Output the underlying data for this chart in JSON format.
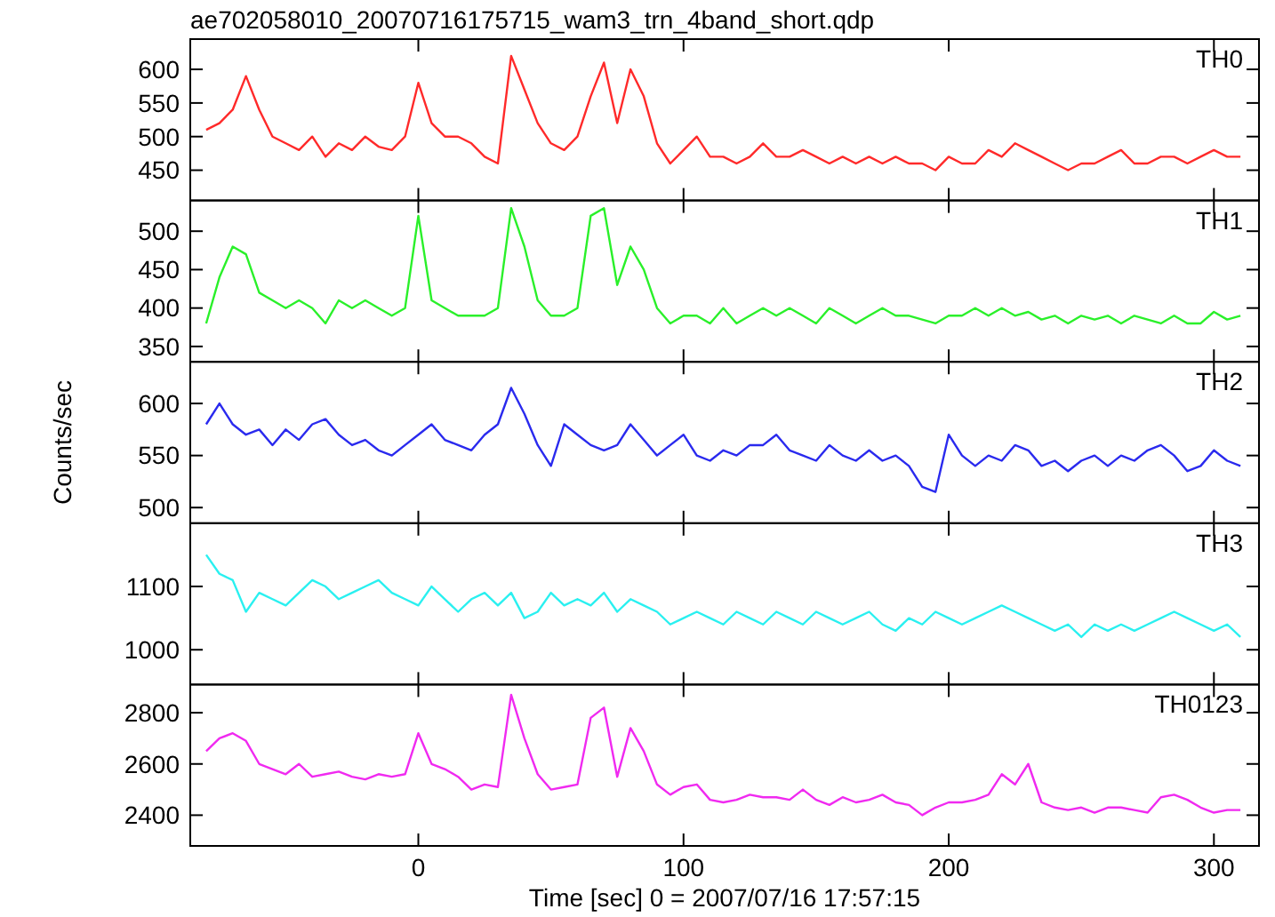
{
  "chart_data": [
    {
      "type": "line",
      "title": "ae702058010_20070716175715_wam3_trn_4band_short.qdp",
      "x": [
        -80,
        -75,
        -70,
        -65,
        -60,
        -55,
        -50,
        -45,
        -40,
        -35,
        -30,
        -25,
        -20,
        -15,
        -10,
        -5,
        0,
        5,
        10,
        15,
        20,
        25,
        30,
        35,
        40,
        45,
        50,
        55,
        60,
        65,
        70,
        75,
        80,
        85,
        90,
        95,
        100,
        105,
        110,
        115,
        120,
        125,
        130,
        135,
        140,
        145,
        150,
        155,
        160,
        165,
        170,
        175,
        180,
        185,
        190,
        195,
        200,
        205,
        210,
        215,
        220,
        225,
        230,
        235,
        240,
        245,
        250,
        255,
        260,
        265,
        270,
        275,
        280,
        285,
        290,
        295,
        300,
        305,
        310
      ],
      "xlim": [
        -86,
        317
      ],
      "xticks": [
        0,
        100,
        200,
        300
      ],
      "ylim": [
        405,
        645
      ],
      "yticks": [
        450,
        500,
        550,
        600
      ],
      "tick_labels": "y",
      "series": [
        {
          "name": "TH0",
          "color": "#ff2a2a",
          "values": [
            510,
            520,
            540,
            590,
            540,
            500,
            490,
            480,
            500,
            470,
            490,
            480,
            500,
            485,
            480,
            500,
            580,
            520,
            500,
            500,
            490,
            470,
            460,
            620,
            570,
            520,
            490,
            480,
            500,
            560,
            610,
            520,
            600,
            560,
            490,
            460,
            480,
            500,
            470,
            470,
            460,
            470,
            490,
            470,
            470,
            480,
            470,
            460,
            470,
            460,
            470,
            460,
            470,
            460,
            460,
            450,
            470,
            460,
            460,
            480,
            470,
            490,
            480,
            470,
            460,
            450,
            460,
            460,
            470,
            480,
            460,
            460,
            470,
            470,
            460,
            470,
            480,
            470,
            470
          ]
        }
      ]
    },
    {
      "type": "line",
      "x": [
        -80,
        -75,
        -70,
        -65,
        -60,
        -55,
        -50,
        -45,
        -40,
        -35,
        -30,
        -25,
        -20,
        -15,
        -10,
        -5,
        0,
        5,
        10,
        15,
        20,
        25,
        30,
        35,
        40,
        45,
        50,
        55,
        60,
        65,
        70,
        75,
        80,
        85,
        90,
        95,
        100,
        105,
        110,
        115,
        120,
        125,
        130,
        135,
        140,
        145,
        150,
        155,
        160,
        165,
        170,
        175,
        180,
        185,
        190,
        195,
        200,
        205,
        210,
        215,
        220,
        225,
        230,
        235,
        240,
        245,
        250,
        255,
        260,
        265,
        270,
        275,
        280,
        285,
        290,
        295,
        300,
        305,
        310
      ],
      "xlim": [
        -86,
        317
      ],
      "xticks": [
        0,
        100,
        200,
        300
      ],
      "ylim": [
        330,
        540
      ],
      "yticks": [
        350,
        400,
        450,
        500
      ],
      "tick_labels": "y",
      "series": [
        {
          "name": "TH1",
          "color": "#2af02a",
          "values": [
            380,
            440,
            480,
            470,
            420,
            410,
            400,
            410,
            400,
            380,
            410,
            400,
            410,
            400,
            390,
            400,
            520,
            410,
            400,
            390,
            390,
            390,
            400,
            530,
            480,
            410,
            390,
            390,
            400,
            520,
            530,
            430,
            480,
            450,
            400,
            380,
            390,
            390,
            380,
            400,
            380,
            390,
            400,
            390,
            400,
            390,
            380,
            400,
            390,
            380,
            390,
            400,
            390,
            390,
            385,
            380,
            390,
            390,
            400,
            390,
            400,
            390,
            395,
            385,
            390,
            380,
            390,
            385,
            390,
            380,
            390,
            385,
            380,
            390,
            380,
            380,
            395,
            385,
            390
          ]
        }
      ]
    },
    {
      "type": "line",
      "ylabel": "Counts/sec",
      "x": [
        -80,
        -75,
        -70,
        -65,
        -60,
        -55,
        -50,
        -45,
        -40,
        -35,
        -30,
        -25,
        -20,
        -15,
        -10,
        -5,
        0,
        5,
        10,
        15,
        20,
        25,
        30,
        35,
        40,
        45,
        50,
        55,
        60,
        65,
        70,
        75,
        80,
        85,
        90,
        95,
        100,
        105,
        110,
        115,
        120,
        125,
        130,
        135,
        140,
        145,
        150,
        155,
        160,
        165,
        170,
        175,
        180,
        185,
        190,
        195,
        200,
        205,
        210,
        215,
        220,
        225,
        230,
        235,
        240,
        245,
        250,
        255,
        260,
        265,
        270,
        275,
        280,
        285,
        290,
        295,
        300,
        305,
        310
      ],
      "xlim": [
        -86,
        317
      ],
      "xticks": [
        0,
        100,
        200,
        300
      ],
      "ylim": [
        485,
        640
      ],
      "yticks": [
        500,
        550,
        600
      ],
      "tick_labels": "y",
      "series": [
        {
          "name": "TH2",
          "color": "#2a2aee",
          "values": [
            580,
            600,
            580,
            570,
            575,
            560,
            575,
            565,
            580,
            585,
            570,
            560,
            565,
            555,
            550,
            560,
            570,
            580,
            565,
            560,
            555,
            570,
            580,
            615,
            590,
            560,
            540,
            580,
            570,
            560,
            555,
            560,
            580,
            565,
            550,
            560,
            570,
            550,
            545,
            555,
            550,
            560,
            560,
            570,
            555,
            550,
            545,
            560,
            550,
            545,
            555,
            545,
            550,
            540,
            520,
            515,
            570,
            550,
            540,
            550,
            545,
            560,
            555,
            540,
            545,
            535,
            545,
            550,
            540,
            550,
            545,
            555,
            560,
            550,
            535,
            540,
            555,
            545,
            540
          ]
        }
      ]
    },
    {
      "type": "line",
      "x": [
        -80,
        -75,
        -70,
        -65,
        -60,
        -55,
        -50,
        -45,
        -40,
        -35,
        -30,
        -25,
        -20,
        -15,
        -10,
        -5,
        0,
        5,
        10,
        15,
        20,
        25,
        30,
        35,
        40,
        45,
        50,
        55,
        60,
        65,
        70,
        75,
        80,
        85,
        90,
        95,
        100,
        105,
        110,
        115,
        120,
        125,
        130,
        135,
        140,
        145,
        150,
        155,
        160,
        165,
        170,
        175,
        180,
        185,
        190,
        195,
        200,
        205,
        210,
        215,
        220,
        225,
        230,
        235,
        240,
        245,
        250,
        255,
        260,
        265,
        270,
        275,
        280,
        285,
        290,
        295,
        300,
        305,
        310
      ],
      "xlim": [
        -86,
        317
      ],
      "xticks": [
        0,
        100,
        200,
        300
      ],
      "ylim": [
        945,
        1200
      ],
      "yticks": [
        1000,
        1100
      ],
      "tick_labels": "y",
      "series": [
        {
          "name": "TH3",
          "color": "#2af0f0",
          "values": [
            1150,
            1120,
            1110,
            1060,
            1090,
            1080,
            1070,
            1090,
            1110,
            1100,
            1080,
            1090,
            1100,
            1110,
            1090,
            1080,
            1070,
            1100,
            1080,
            1060,
            1080,
            1090,
            1070,
            1090,
            1050,
            1060,
            1090,
            1070,
            1080,
            1070,
            1090,
            1060,
            1080,
            1070,
            1060,
            1040,
            1050,
            1060,
            1050,
            1040,
            1060,
            1050,
            1040,
            1060,
            1050,
            1040,
            1060,
            1050,
            1040,
            1050,
            1060,
            1040,
            1030,
            1050,
            1040,
            1060,
            1050,
            1040,
            1050,
            1060,
            1070,
            1060,
            1050,
            1040,
            1030,
            1040,
            1020,
            1040,
            1030,
            1040,
            1030,
            1040,
            1050,
            1060,
            1050,
            1040,
            1030,
            1040,
            1020
          ]
        }
      ]
    },
    {
      "type": "line",
      "xlabel": "Time [sec] 0 = 2007/07/16 17:57:15",
      "x": [
        -80,
        -75,
        -70,
        -65,
        -60,
        -55,
        -50,
        -45,
        -40,
        -35,
        -30,
        -25,
        -20,
        -15,
        -10,
        -5,
        0,
        5,
        10,
        15,
        20,
        25,
        30,
        35,
        40,
        45,
        50,
        55,
        60,
        65,
        70,
        75,
        80,
        85,
        90,
        95,
        100,
        105,
        110,
        115,
        120,
        125,
        130,
        135,
        140,
        145,
        150,
        155,
        160,
        165,
        170,
        175,
        180,
        185,
        190,
        195,
        200,
        205,
        210,
        215,
        220,
        225,
        230,
        235,
        240,
        245,
        250,
        255,
        260,
        265,
        270,
        275,
        280,
        285,
        290,
        295,
        300,
        305,
        310
      ],
      "xlim": [
        -86,
        317
      ],
      "xticks": [
        0,
        100,
        200,
        300
      ],
      "ylim": [
        2280,
        2910
      ],
      "yticks": [
        2400,
        2600,
        2800
      ],
      "series": [
        {
          "name": "TH0123",
          "color": "#f02af0",
          "values": [
            2650,
            2700,
            2720,
            2690,
            2600,
            2580,
            2560,
            2600,
            2550,
            2560,
            2570,
            2550,
            2540,
            2560,
            2550,
            2560,
            2720,
            2600,
            2580,
            2550,
            2500,
            2520,
            2510,
            2870,
            2700,
            2560,
            2500,
            2510,
            2520,
            2780,
            2820,
            2550,
            2740,
            2650,
            2520,
            2480,
            2510,
            2520,
            2460,
            2450,
            2460,
            2480,
            2470,
            2470,
            2460,
            2500,
            2460,
            2440,
            2470,
            2450,
            2460,
            2480,
            2450,
            2440,
            2400,
            2430,
            2450,
            2450,
            2460,
            2480,
            2560,
            2520,
            2600,
            2450,
            2430,
            2420,
            2430,
            2410,
            2430,
            2430,
            2420,
            2410,
            2470,
            2480,
            2460,
            2430,
            2410,
            2420,
            2420
          ]
        }
      ]
    }
  ]
}
